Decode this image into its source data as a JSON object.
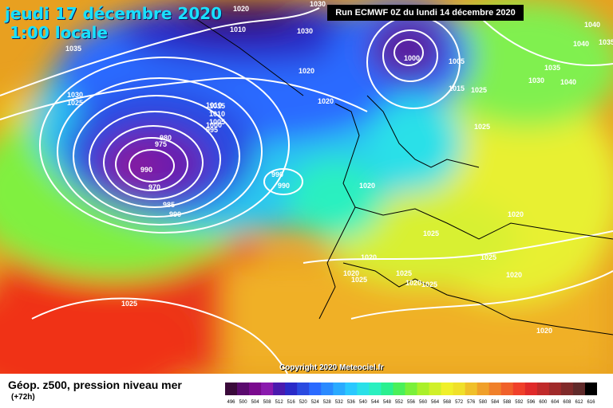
{
  "header": {
    "date_line": "jeudi 17 décembre 2020",
    "time_line": "1:00 locale"
  },
  "run_info": "Run ECMWF 0Z du lundi 14 décembre 2020",
  "copyright": "Copyright 2020 Meteociel.fr",
  "footer": {
    "title": "Géop. z500, pression niveau mer",
    "forecast_hour": "(+72h)"
  },
  "scale": {
    "values": [
      "496",
      "500",
      "504",
      "508",
      "512",
      "516",
      "520",
      "524",
      "528",
      "532",
      "536",
      "540",
      "544",
      "548",
      "552",
      "556",
      "560",
      "564",
      "568",
      "572",
      "576",
      "580",
      "584",
      "588",
      "592",
      "596",
      "600",
      "604",
      "608",
      "612",
      "616"
    ],
    "colors": [
      "#3a0a3a",
      "#5a0a6e",
      "#7a0a8e",
      "#8a1aae",
      "#4a1aae",
      "#2a2ac8",
      "#2a4ae0",
      "#2a6aff",
      "#2a8aff",
      "#2aaaff",
      "#2ac8ff",
      "#2ae0e8",
      "#2af0c0",
      "#2af090",
      "#4af05a",
      "#7af03a",
      "#aaf02a",
      "#d0f02a",
      "#f0f02a",
      "#f0e02a",
      "#f0c02a",
      "#f0a02a",
      "#f0802a",
      "#f0602a",
      "#f0402a",
      "#e02a2a",
      "#c02a2a",
      "#a02a2a",
      "#802a2a",
      "#602a2a",
      "#000000"
    ]
  },
  "pressure_labels": [
    "1020",
    "1030",
    "1010",
    "1030",
    "1035",
    "1030",
    "1025",
    "1020",
    "1000",
    "1005",
    "1010",
    "1015",
    "1025",
    "1040",
    "1040",
    "1035",
    "1035",
    "1030",
    "1040",
    "1020",
    "980",
    "975",
    "970",
    "990",
    "985",
    "990",
    "990",
    "990",
    "1015",
    "1010",
    "1005",
    "1000",
    "995",
    "1020",
    "1025",
    "1020",
    "1025",
    "1025",
    "1020",
    "1025",
    "1020",
    "1020",
    "1025",
    "1020",
    "1020",
    "1025",
    "1025"
  ]
}
